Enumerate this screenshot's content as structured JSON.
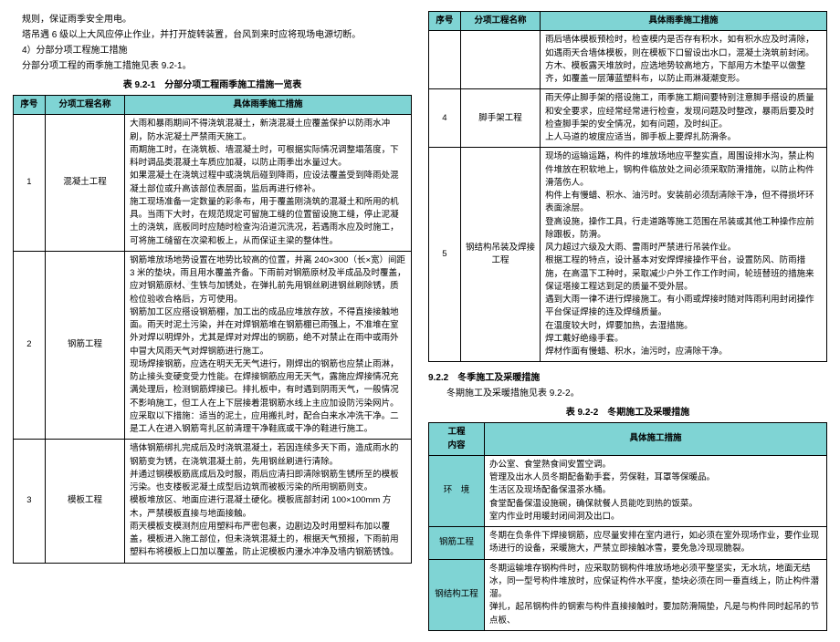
{
  "intro": {
    "l1": "规则，保证雨季安全用电。",
    "l2": "塔吊遇 6 级以上大风应停止作业，并打开旋转装置，台风到来时应将现场电源切断。",
    "l3": "4）分部分项工程施工措施",
    "l4": "分部分项工程的雨季施工措施见表 9.2-1。"
  },
  "t1": {
    "title": "表 9.2-1　分部分项工程雨季施工措施一览表",
    "col_widths": [
      "8%",
      "20%",
      "72%"
    ],
    "head": [
      "序号",
      "分项工程名称",
      "具体雨季施工措施"
    ],
    "rows": [
      {
        "no": "1",
        "name": "混凝土工程",
        "text": "大雨和暴雨期间不得浇筑混凝土，新浇混凝土应覆盖保护以防雨水冲刷，防水泥凝土严禁雨天施工。\n雨期施工时，在浇筑板、墙混凝土时，可根据实际情况调整塌落度，下料时调品类混凝土车质应加凝，以防止雨季出水量过大。\n如果混凝土在浇筑过程中或浇筑后碰到降雨，应设法覆盖受到降雨处混凝土部位或升高该部位表层面，监后再进行修补。\n施工现场准备一定数量的彩条布，用于覆盖刚浇筑的混凝土和所用的机具。当雨下大时，在规范规定可留施工缝的位置留设施工缝，停止泥凝土的浇筑，底板同时应随时检查沟沿道沉洗况，若遇雨水应及时施工，可将施工缝留在次梁和板上，从而保证主梁的整体性。"
      },
      {
        "no": "2",
        "name": "钢筋工程",
        "text": "钢筋堆放场地势设置在地势比较高的位置，并离 240×300（长×宽）间距 3 米的垫块，雨且用水覆盖齐备。下雨前对钢筋原材及半成品及时覆盖，应对钢筋原材、生铁与加锈处，在弹扎前先用钢丝刷进钢丝刷除锈，质检位验收合格后，方可使用。\n钢筋加工区应搭设钢筋棚，加工出的成品应堆放存放，不得直接接触地面。雨天时泥土污染，并在对焊钢筋堆在钢筋棚已雨强上，不准堆在室外对焊以明焊外，尤其是焊对对焊出的钢筋，绝不对禁止在雨中或雨外中冒大风雨天气对焊钢筋进行施工。\n现场焊接钢筋，应选在明天无天气进行，刚焊出的钢筋也应禁止雨淋，防止接头变硬变受力性能。在焊接钢筋应用无天气，露施应焊接情况充满处理后，检测钢筋焊接已。排扎板中，有时遇到阴雨天气，一般情况不影响施工，但工人在上下层接着混钢筋水线上主应加设防污染网片。应采取以下措施：适当的泥土，应用搬扎时，配合白来水冲洗干净。二是工人在进入钢筋弯扎区前清理干净鞋底或干净的鞋进行施工。"
      },
      {
        "no": "3",
        "name": "模板工程",
        "text": "墙体钢筋绑扎完成后及时浇筑混凝土，若因连续多天下雨，造成雨水的钢筋变为锈，在浇筑混凝土前，先用钢丝刷进行清除。\n并通过钢模板筋底成后及时服，雨后应清扫即清除钢筋生锈所至的模板污染。也支楼板泥凝土成型后边筑而被板污染的所用钢筋则支。\n模板堆放区、地面应进行混凝土硬化。模板底部封闭 100×100mm 方木，严禁模板直接与地面接触。\n雨天模板支模测剂应用塑料布严密包裹，边剧边及时用塑料布加以覆盖，模板进入施工部位，但未浇筑混凝土的，根据天气预报，下雨前用塑料布将模板上口加以覆盖，防止泥模板内漫水冲净及墙内钢筋锈蚀。"
      }
    ]
  },
  "t1b": {
    "col_widths": [
      "8%",
      "20%",
      "72%"
    ],
    "head": [
      "序号",
      "分项工程名称",
      "具体雨季施工措施"
    ],
    "rows": [
      {
        "no": "",
        "name": "",
        "text": "雨后墙体模板预检时，检查模内是否存有积水，如有积水应及时清除，如遇雨天合墙体模板，则在模板下口留设出水口，混凝土浇筑前封闭。\n方木、模板露天堆放时，应选地势较高地方，下部用方木垫平以做整齐，如覆盖一层薄蓝塑料布，以防止雨淋凝潮变形。"
      },
      {
        "no": "4",
        "name": "脚手架工程",
        "text": "雨天停止脚手架的搭设施工，雨季施工期间要特别注意脚手搭设的质量和安全要求，应经常经常进行检查，发现问题及时整改，暴雨后要及时检查脚手架的安全情况，如有问题，及时纠正。\n上人马道的坡度应适当，脚手板上要焊扎防滑条。"
      },
      {
        "no": "5",
        "name": "钢结构吊装及焊接工程",
        "text": "现场的运输运路，构件的堆放场地应平整实直，周围设排水沟，禁止构件堆放在积软地上，钢构件临放处之间必须采取防滑措施，以防止构件滑落伤人。\n构件上有慢蜡、积水、油污时。安装前必须刮清除干净，但不得损坏环表面涂层。\n登高设施，操作工具，行走道路等施工范围在吊装或其他工种操作应前除跟板，防滑。\n风力超过六级及大雨、雷雨时严禁进行吊装作业。\n根据工程的特点，设计基本对安焊焊接操作平台，设置防风、防雨措施，在高温下工种时，采取减少户外工作工作时间，轮班替班的措施来保证塔接工程达到足的质量不受外层。\n遇到大雨一律不进行焊接施工。有小雨或焊接时随对阵雨利用封闭操作平台保证焊接的连及焊缝质量。\n在温度较大时，焊要加热，去湿措施。\n焊工戴好绝缘手套。\n焊材作面有慢蜡、积水，油污时，应清除干净。"
      }
    ]
  },
  "sec2": {
    "title": "9.2.2　冬季施工及采暖措施",
    "line": "冬期施工及采暖措施见表 9.2-2。",
    "table_title": "表 9.2-2　冬期施工及采暖措施"
  },
  "t2": {
    "col_widths": [
      "14%",
      "86%"
    ],
    "head": [
      "工程\n内容",
      "具体施工措施"
    ],
    "rows": [
      {
        "name": "环　境",
        "text": "办公室、食堂熟食间安置空调。\n管理及出水人员冬期配备勤手套，劳保鞋，耳罩等保暖品。\n生活区及现场配备保温茶水桶。\n食堂配备保温设施碗，确保就餐人员能吃到热的饭菜。\n室内作业时用暖封闭间洞及出口。"
      },
      {
        "name": "钢筋工程",
        "text": "冬期在负条件下焊接钢筋，应尽量安排在室内进行，如必须在室外现场作业，要作业现场进行的设备，采暖施大，严禁立即接触冰雪，要免急冷现现脆裂。"
      },
      {
        "name": "钢结构工程",
        "text": "冬期运输堆存钢构件时，应采取防钢构件堆放场地必须平整坚实，无水坑，地面无结冰，同一型号构件堆放时，应保证构件水平度，垫块必须在同一垂直线上，防止构件潜溜。\n弹扎，起吊钢构件的钢索与构件直接接触时，要加防滑隔垫，凡是与构件同时起吊的节点板、"
      }
    ]
  },
  "colors": {
    "head_bg": "#7fd4d4",
    "border": "#000000",
    "background": "#ffffff"
  }
}
